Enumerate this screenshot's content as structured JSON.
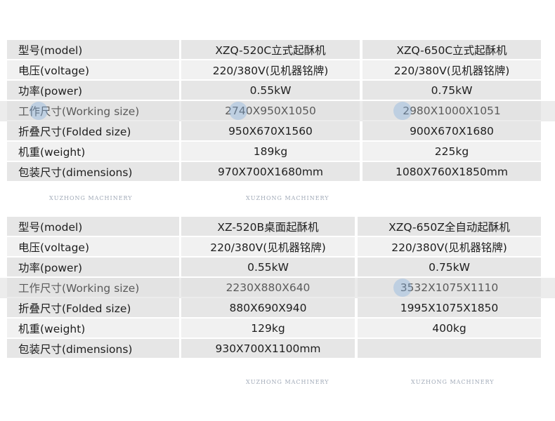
{
  "watermark": "XUZHONG MACHINERY",
  "tables": [
    {
      "rows": [
        [
          "型号(model)",
          "XZQ-520C立式起酥机",
          "XZQ-650C立式起酥机"
        ],
        [
          "电压(voltage)",
          "220/380V(见机器铭牌)",
          "220/380V(见机器铭牌)"
        ],
        [
          "功率(power)",
          "0.55kW",
          "0.75kW"
        ],
        [
          "工作尺寸(Working size)",
          "2740X950X1050",
          "2980X1000X1051"
        ],
        [
          "折叠尺寸(Folded size)",
          "950X670X1560",
          "900X670X1680"
        ],
        [
          "机重(weight)",
          "189kg",
          "225kg"
        ],
        [
          "包装尺寸(dimensions)",
          "970X700X1680mm",
          "1080X760X1850mm"
        ]
      ]
    },
    {
      "rows": [
        [
          "型号(model)",
          "XZ-520B桌面起酥机",
          "XZQ-650Z全自动起酥机"
        ],
        [
          "电压(voltage)",
          "220/380V(见机器铭牌)",
          "220/380V(见机器铭牌)"
        ],
        [
          "功率(power)",
          "0.55kW",
          "0.75kW"
        ],
        [
          "工作尺寸(Working size)",
          "2230X880X640",
          "3532X1075X1110"
        ],
        [
          "折叠尺寸(Folded size)",
          "880X690X940",
          "1995X1075X1850"
        ],
        [
          "机重(weight)",
          "129kg",
          "400kg"
        ],
        [
          "包装尺寸(dimensions)",
          "930X700X1100mm",
          ""
        ]
      ]
    }
  ]
}
